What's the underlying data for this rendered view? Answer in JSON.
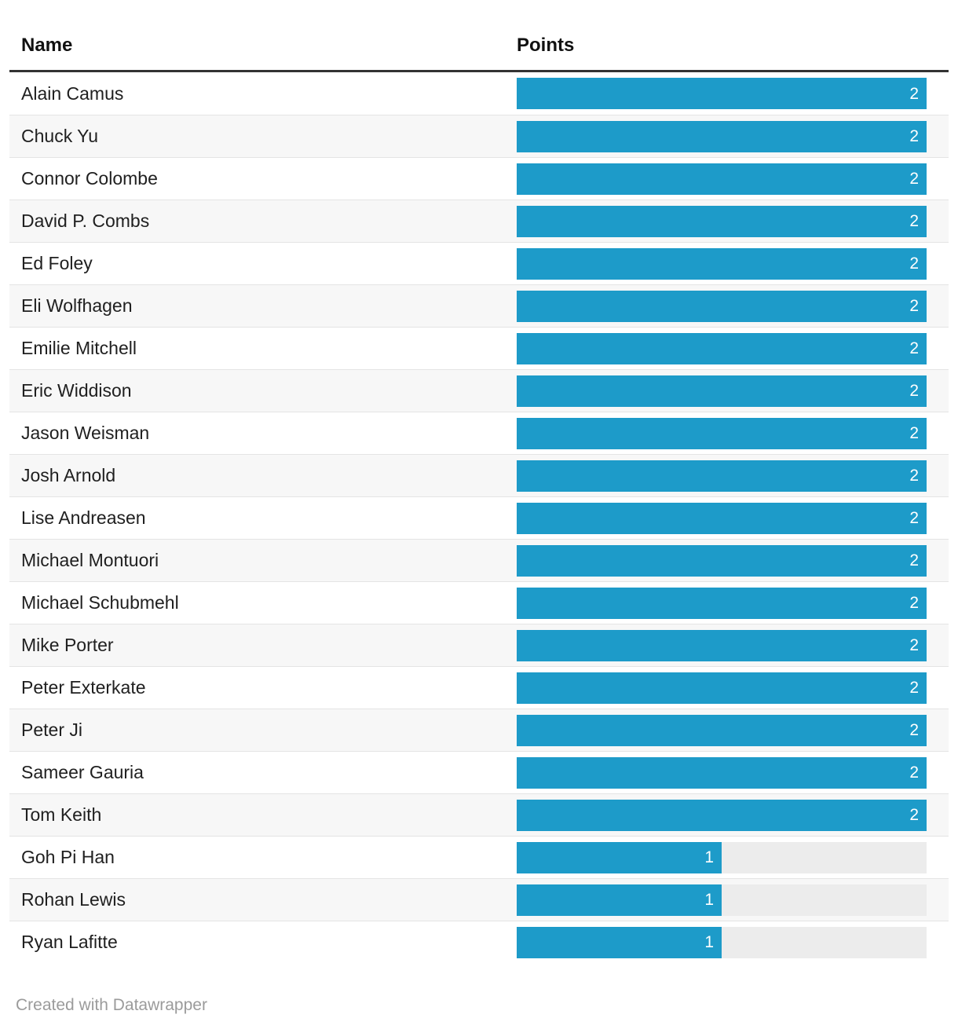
{
  "chart_data": {
    "type": "bar",
    "title": "",
    "columns": [
      "Name",
      "Points"
    ],
    "categories": [
      "Alain Camus",
      "Chuck Yu",
      "Connor Colombe",
      "David P. Combs",
      "Ed Foley",
      "Eli Wolfhagen",
      "Emilie Mitchell",
      "Eric Widdison",
      "Jason Weisman",
      "Josh Arnold",
      "Lise Andreasen",
      "Michael Montuori",
      "Michael Schubmehl",
      "Mike Porter",
      "Peter Exterkate",
      "Peter Ji",
      "Sameer Gauria",
      "Tom Keith",
      "Goh Pi Han",
      "Rohan Lewis",
      "Ryan Lafitte"
    ],
    "values": [
      2,
      2,
      2,
      2,
      2,
      2,
      2,
      2,
      2,
      2,
      2,
      2,
      2,
      2,
      2,
      2,
      2,
      2,
      1,
      1,
      1
    ],
    "xlim": [
      0,
      2
    ],
    "legend": "none",
    "grid": false,
    "bar_labels_inside": true
  },
  "table": {
    "header": {
      "name_label": "Name",
      "points_label": "Points"
    },
    "max_points": 2
  },
  "footer": {
    "credit": "Created with Datawrapper"
  },
  "colors": {
    "bar": "#1d9bc9",
    "track": "#ececec",
    "stripe": "#f7f7f7",
    "separator": "#e4e4e4",
    "header_rule": "#333333",
    "value_text": "#ffffff",
    "footer_text": "#9b9b9b"
  }
}
